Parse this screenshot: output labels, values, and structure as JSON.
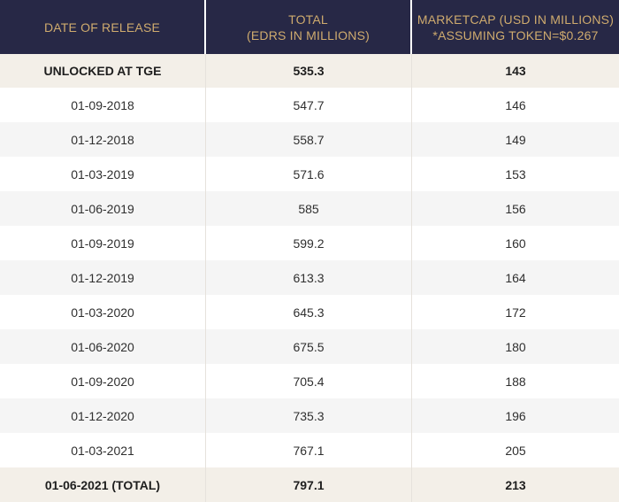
{
  "table": {
    "headers": [
      {
        "line1": "DATE OF RELEASE",
        "line2": ""
      },
      {
        "line1": "TOTAL",
        "line2": "(EDRS IN MILLIONS)"
      },
      {
        "line1": "MARKETCAP (USD IN MILLIONS)",
        "line2": "*ASSUMING TOKEN=$0.267"
      }
    ],
    "tge_row": {
      "date": "UNLOCKED AT TGE",
      "total": "535.3",
      "marketcap": "143"
    },
    "rows": [
      {
        "date": "01-09-2018",
        "total": "547.7",
        "marketcap": "146"
      },
      {
        "date": "01-12-2018",
        "total": "558.7",
        "marketcap": "149"
      },
      {
        "date": "01-03-2019",
        "total": "571.6",
        "marketcap": "153"
      },
      {
        "date": "01-06-2019",
        "total": "585",
        "marketcap": "156"
      },
      {
        "date": "01-09-2019",
        "total": "599.2",
        "marketcap": "160"
      },
      {
        "date": "01-12-2019",
        "total": "613.3",
        "marketcap": "164"
      },
      {
        "date": "01-03-2020",
        "total": "645.3",
        "marketcap": "172"
      },
      {
        "date": "01-06-2020",
        "total": "675.5",
        "marketcap": "180"
      },
      {
        "date": "01-09-2020",
        "total": "705.4",
        "marketcap": "188"
      },
      {
        "date": "01-12-2020",
        "total": "735.3",
        "marketcap": "196"
      },
      {
        "date": "01-03-2021",
        "total": "767.1",
        "marketcap": "205"
      }
    ],
    "total_row": {
      "date": "01-06-2021 (TOTAL)",
      "total": "797.1",
      "marketcap": "213"
    }
  },
  "colors": {
    "header_bg": "#272846",
    "header_text": "#cfab6e",
    "highlight_row_bg": "#f3efe8",
    "stripe_row_bg": "#f5f5f5",
    "text": "#2f2f2f"
  }
}
